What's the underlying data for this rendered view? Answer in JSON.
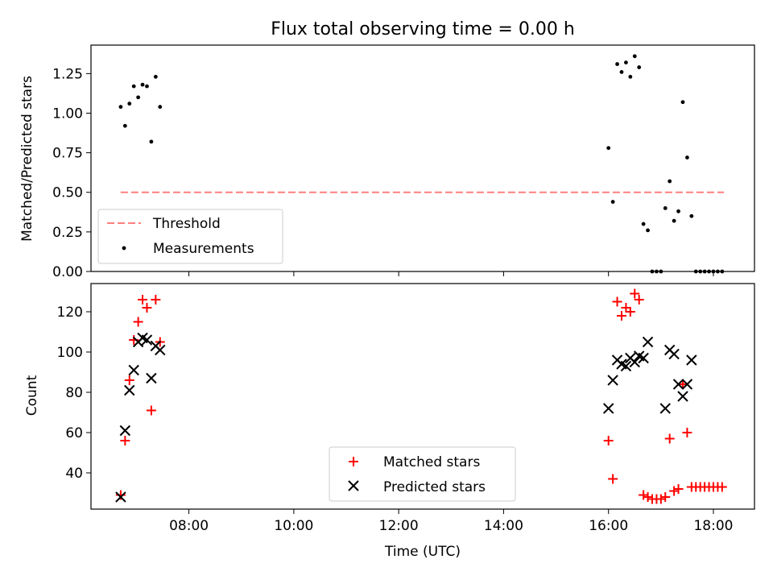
{
  "chart_data": [
    {
      "type": "scatter",
      "title": "Flux total observing time = 0.00 h",
      "xlabel": "",
      "ylabel": "Matched/Predicted stars",
      "xlim": [
        "06:08",
        "18:47"
      ],
      "ylim": [
        0,
        1.43
      ],
      "yticks": [
        "0.00",
        "0.25",
        "0.50",
        "0.75",
        "1.00",
        "1.25"
      ],
      "legend": {
        "position": "lower-left",
        "entries": [
          "Threshold",
          "Measurements"
        ]
      },
      "threshold": {
        "name": "Threshold",
        "value": 0.5,
        "x_start": "06:42",
        "x_end": "18:12",
        "color": "#ff7f7f",
        "style": "dashed"
      },
      "series": [
        {
          "name": "Measurements",
          "marker": "dot",
          "color": "#000000",
          "points": [
            [
              "06:42",
              1.04
            ],
            [
              "06:47",
              0.92
            ],
            [
              "06:52",
              1.06
            ],
            [
              "06:57",
              1.17
            ],
            [
              "07:02",
              1.1
            ],
            [
              "07:07",
              1.18
            ],
            [
              "07:12",
              1.17
            ],
            [
              "07:17",
              0.82
            ],
            [
              "07:22",
              1.23
            ],
            [
              "07:27",
              1.04
            ],
            [
              "16:00",
              0.78
            ],
            [
              "16:05",
              0.44
            ],
            [
              "16:10",
              1.31
            ],
            [
              "16:15",
              1.26
            ],
            [
              "16:20",
              1.32
            ],
            [
              "16:25",
              1.23
            ],
            [
              "16:30",
              1.36
            ],
            [
              "16:35",
              1.29
            ],
            [
              "16:40",
              0.3
            ],
            [
              "16:45",
              0.26
            ],
            [
              "16:50",
              0.0
            ],
            [
              "16:55",
              0.0
            ],
            [
              "17:00",
              0.0
            ],
            [
              "17:05",
              0.4
            ],
            [
              "17:10",
              0.57
            ],
            [
              "17:15",
              0.32
            ],
            [
              "17:20",
              0.38
            ],
            [
              "17:25",
              1.07
            ],
            [
              "17:30",
              0.72
            ],
            [
              "17:35",
              0.35
            ],
            [
              "17:40",
              0.0
            ],
            [
              "17:45",
              0.0
            ],
            [
              "17:50",
              0.0
            ],
            [
              "17:55",
              0.0
            ],
            [
              "18:00",
              0.0
            ],
            [
              "18:05",
              0.0
            ],
            [
              "18:10",
              0.0
            ]
          ]
        }
      ]
    },
    {
      "type": "scatter",
      "title": "",
      "xlabel": "Time (UTC)",
      "ylabel": "Count",
      "xlim": [
        "06:08",
        "18:47"
      ],
      "ylim": [
        22,
        134
      ],
      "xticks": [
        "08:00",
        "10:00",
        "12:00",
        "14:00",
        "16:00",
        "18:00"
      ],
      "yticks": [
        "40",
        "60",
        "80",
        "100",
        "120"
      ],
      "legend": {
        "position": "lower-center",
        "entries": [
          "Matched stars",
          "Predicted stars"
        ]
      },
      "series": [
        {
          "name": "Matched stars",
          "marker": "plus",
          "color": "#ff0000",
          "points": [
            [
              "06:42",
              29
            ],
            [
              "06:47",
              56
            ],
            [
              "06:52",
              86
            ],
            [
              "06:57",
              106
            ],
            [
              "07:02",
              115
            ],
            [
              "07:07",
              126
            ],
            [
              "07:12",
              122
            ],
            [
              "07:17",
              71
            ],
            [
              "07:22",
              126
            ],
            [
              "07:27",
              105
            ],
            [
              "16:00",
              56
            ],
            [
              "16:05",
              37
            ],
            [
              "16:10",
              125
            ],
            [
              "16:15",
              118
            ],
            [
              "16:20",
              122
            ],
            [
              "16:25",
              120
            ],
            [
              "16:30",
              129
            ],
            [
              "16:35",
              126
            ],
            [
              "16:40",
              29
            ],
            [
              "16:45",
              28
            ],
            [
              "16:50",
              27
            ],
            [
              "16:55",
              27
            ],
            [
              "17:00",
              27
            ],
            [
              "17:05",
              28
            ],
            [
              "17:10",
              57
            ],
            [
              "17:15",
              31
            ],
            [
              "17:20",
              32
            ],
            [
              "17:25",
              84
            ],
            [
              "17:30",
              60
            ],
            [
              "17:35",
              33
            ],
            [
              "17:40",
              33
            ],
            [
              "17:45",
              33
            ],
            [
              "17:50",
              33
            ],
            [
              "17:55",
              33
            ],
            [
              "18:00",
              33
            ],
            [
              "18:05",
              33
            ],
            [
              "18:10",
              33
            ]
          ]
        },
        {
          "name": "Predicted stars",
          "marker": "x",
          "color": "#000000",
          "points": [
            [
              "06:42",
              28
            ],
            [
              "06:47",
              61
            ],
            [
              "06:52",
              81
            ],
            [
              "06:57",
              91
            ],
            [
              "07:02",
              105
            ],
            [
              "07:07",
              107
            ],
            [
              "07:12",
              106
            ],
            [
              "07:17",
              87
            ],
            [
              "07:22",
              103
            ],
            [
              "07:27",
              101
            ],
            [
              "16:00",
              72
            ],
            [
              "16:05",
              86
            ],
            [
              "16:10",
              96
            ],
            [
              "16:15",
              94
            ],
            [
              "16:20",
              93
            ],
            [
              "16:25",
              97
            ],
            [
              "16:30",
              95
            ],
            [
              "16:35",
              98
            ],
            [
              "16:40",
              97
            ],
            [
              "16:45",
              105
            ],
            [
              "17:05",
              72
            ],
            [
              "17:10",
              101
            ],
            [
              "17:15",
              99
            ],
            [
              "17:20",
              84
            ],
            [
              "17:25",
              78
            ],
            [
              "17:30",
              84
            ],
            [
              "17:35",
              96
            ]
          ]
        }
      ]
    }
  ]
}
